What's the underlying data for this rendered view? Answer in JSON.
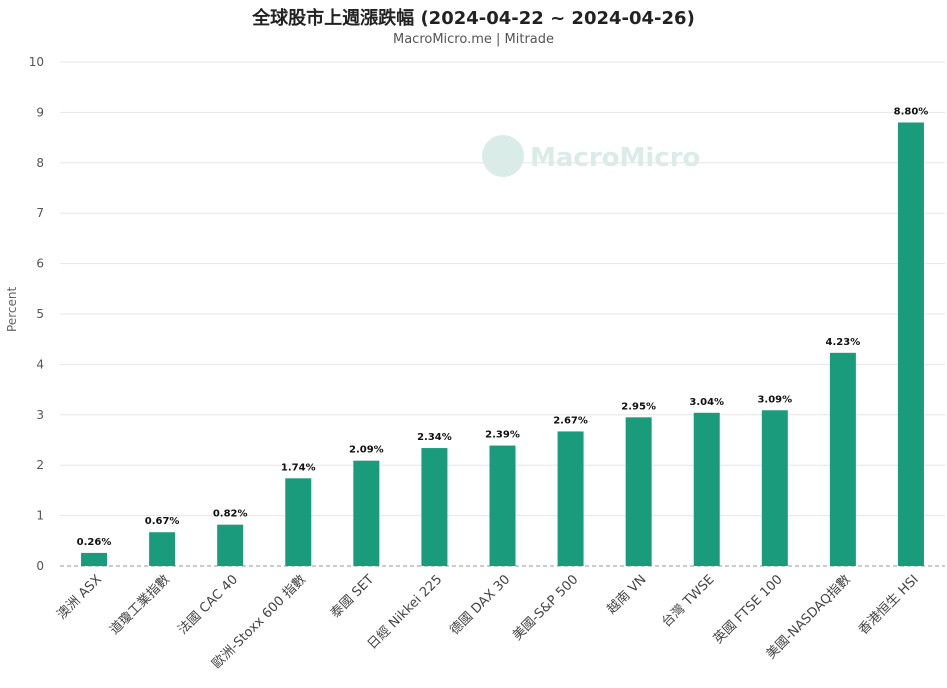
{
  "chart_data": {
    "type": "bar",
    "title": "全球股市上週漲跌幅 (2024-04-22 ~ 2024-04-26)",
    "subtitle": "MacroMicro.me | Mitrade",
    "ylabel": "Percent",
    "ylim": [
      0,
      10
    ],
    "yticks": [
      "0",
      "1",
      "2",
      "3",
      "4",
      "5",
      "6",
      "7",
      "8",
      "9",
      "10"
    ],
    "grid": true,
    "watermark": "MacroMicro",
    "bar_color": "#1a9c7c",
    "categories": [
      "澳洲 ASX",
      "道瓊工業指數",
      "法國 CAC 40",
      "歐洲-Stoxx 600 指數",
      "泰國 SET",
      "日經 Nikkei 225",
      "德國 DAX 30",
      "美國-S&P 500",
      "越南 VN",
      "台灣 TWSE",
      "英國 FTSE 100",
      "美國-NASDAQ指數",
      "香港恒生 HSI"
    ],
    "values": [
      0.26,
      0.67,
      0.82,
      1.74,
      2.09,
      2.34,
      2.39,
      2.67,
      2.95,
      3.04,
      3.09,
      4.23,
      8.8
    ],
    "data_labels": [
      "0.26%",
      "0.67%",
      "0.82%",
      "1.74%",
      "2.09%",
      "2.34%",
      "2.39%",
      "2.67%",
      "2.95%",
      "3.04%",
      "3.09%",
      "4.23%",
      "8.80%"
    ]
  }
}
